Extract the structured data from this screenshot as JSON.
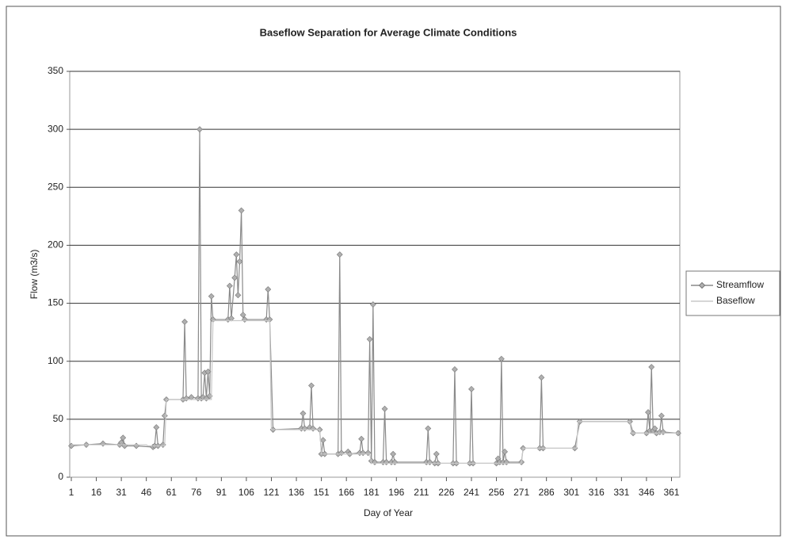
{
  "chart_data": {
    "type": "line",
    "title": "Baseflow Separation for Average Climate Conditions",
    "x_label": "Day of Year",
    "y_label": "Flow (m3/s)",
    "xlim": [
      1,
      366
    ],
    "xticks": [
      1,
      16,
      31,
      46,
      61,
      76,
      91,
      106,
      121,
      136,
      151,
      166,
      181,
      196,
      211,
      226,
      241,
      256,
      271,
      286,
      301,
      316,
      331,
      346,
      361
    ],
    "ylim": [
      0,
      350
    ],
    "yticks": [
      0,
      50,
      100,
      150,
      200,
      250,
      300,
      350
    ],
    "grid": true,
    "legend": "right",
    "series": [
      {
        "name": "Streamflow",
        "color": "#8a8a8a",
        "marker": "diamond",
        "x": [
          1,
          10,
          20,
          30,
          31,
          32,
          33,
          40,
          50,
          51,
          52,
          53,
          56,
          57,
          58,
          68,
          69,
          70,
          73,
          77,
          78,
          79,
          80,
          81,
          82,
          83,
          84,
          85,
          86,
          95,
          96,
          97,
          99,
          100,
          101,
          102,
          103,
          104,
          105,
          118,
          119,
          120,
          122,
          139,
          140,
          141,
          144,
          145,
          146,
          150,
          151,
          152,
          153,
          161,
          162,
          163,
          167,
          168,
          174,
          175,
          176,
          179,
          180,
          181,
          182,
          183,
          188,
          189,
          190,
          193,
          194,
          195,
          214,
          215,
          216,
          219,
          220,
          221,
          230,
          231,
          232,
          240,
          241,
          242,
          256,
          257,
          258,
          259,
          260,
          261,
          262,
          271,
          272,
          282,
          283,
          284,
          303,
          306,
          336,
          338,
          346,
          347,
          348,
          349,
          350,
          351,
          352,
          354,
          355,
          356,
          365
        ],
        "values": [
          27,
          28,
          29,
          28,
          30,
          34,
          27,
          27,
          26,
          27,
          43,
          27,
          28,
          53,
          67,
          67,
          134,
          68,
          69,
          68,
          300,
          68,
          69,
          90,
          68,
          91,
          70,
          156,
          136,
          136,
          165,
          137,
          172,
          192,
          157,
          186,
          230,
          140,
          136,
          136,
          162,
          136,
          41,
          42,
          55,
          42,
          43,
          79,
          42,
          41,
          20,
          32,
          20,
          20,
          192,
          21,
          22,
          20,
          21,
          33,
          21,
          21,
          119,
          14,
          149,
          13,
          13,
          59,
          13,
          13,
          20,
          13,
          13,
          42,
          13,
          12,
          20,
          12,
          12,
          93,
          12,
          12,
          76,
          12,
          12,
          16,
          13,
          102,
          13,
          22,
          13,
          13,
          25,
          25,
          86,
          25,
          25,
          48,
          48,
          38,
          38,
          56,
          40,
          95,
          40,
          42,
          38,
          39,
          53,
          39,
          38
        ]
      },
      {
        "name": "Baseflow",
        "color": "#c8c8c8",
        "x": [
          1,
          46,
          47,
          57,
          58,
          85,
          86,
          120,
          121,
          150,
          151,
          180,
          181,
          271,
          272,
          304,
          305,
          336,
          337,
          365
        ],
        "values": [
          28,
          28,
          27,
          27,
          67,
          67,
          135,
          135,
          41,
          41,
          20,
          20,
          12,
          12,
          25,
          25,
          48,
          48,
          38,
          38
        ]
      }
    ]
  }
}
